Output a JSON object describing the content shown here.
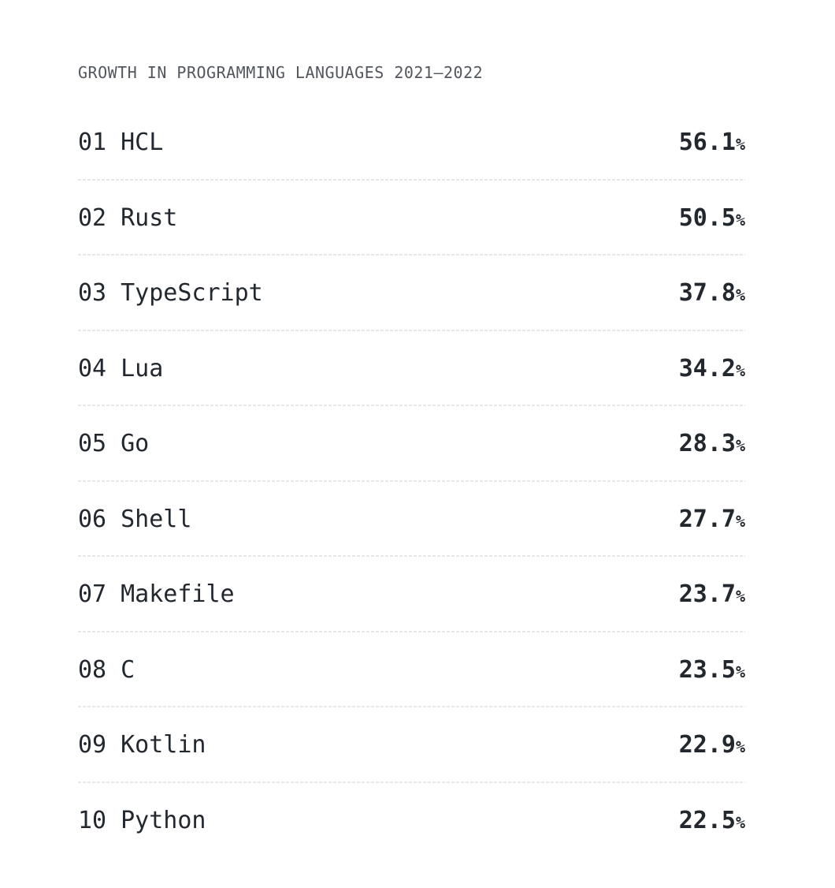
{
  "title": "GROWTH IN PROGRAMMING LANGUAGES 2021–2022",
  "colors": {
    "background": "#ffffff",
    "title_text": "#52575e",
    "row_text": "#23282f",
    "divider": "#e5e7e9"
  },
  "rows": [
    {
      "rank": "01",
      "name": "HCL",
      "value": "56.1",
      "unit": "%"
    },
    {
      "rank": "02",
      "name": "Rust",
      "value": "50.5",
      "unit": "%"
    },
    {
      "rank": "03",
      "name": "TypeScript",
      "value": "37.8",
      "unit": "%"
    },
    {
      "rank": "04",
      "name": "Lua",
      "value": "34.2",
      "unit": "%"
    },
    {
      "rank": "05",
      "name": "Go",
      "value": "28.3",
      "unit": "%"
    },
    {
      "rank": "06",
      "name": "Shell",
      "value": "27.7",
      "unit": "%"
    },
    {
      "rank": "07",
      "name": "Makefile",
      "value": "23.7",
      "unit": "%"
    },
    {
      "rank": "08",
      "name": "C",
      "value": "23.5",
      "unit": "%"
    },
    {
      "rank": "09",
      "name": "Kotlin",
      "value": "22.9",
      "unit": "%"
    },
    {
      "rank": "10",
      "name": "Python",
      "value": "22.5",
      "unit": "%"
    }
  ],
  "chart_data": {
    "type": "table",
    "title": "GROWTH IN PROGRAMMING LANGUAGES 2021–2022",
    "categories": [
      "HCL",
      "Rust",
      "TypeScript",
      "Lua",
      "Go",
      "Shell",
      "Makefile",
      "C",
      "Kotlin",
      "Python"
    ],
    "ranks": [
      "01",
      "02",
      "03",
      "04",
      "05",
      "06",
      "07",
      "08",
      "09",
      "10"
    ],
    "values": [
      56.1,
      50.5,
      37.8,
      34.2,
      28.3,
      27.7,
      23.7,
      23.5,
      22.9,
      22.5
    ],
    "unit": "%",
    "legend": "none",
    "grid": "horizontal-dashed-dividers"
  }
}
